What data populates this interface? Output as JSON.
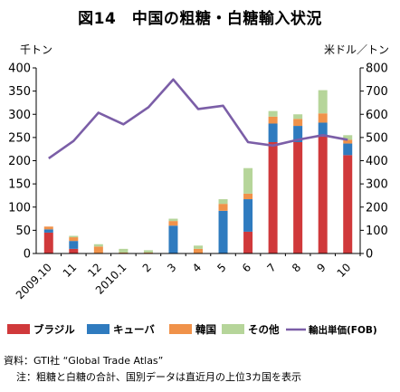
{
  "title": "図14　中国の粗糖・白糖輸入状況",
  "left_unit": "千トン",
  "right_unit": "米ドル／トン",
  "source": "資料：GTI社 “Global Trade Atlas”",
  "note": "注：粗糖と白糖の合計、国別データは直近月の上位3カ国を表示",
  "colors": {
    "brazil": "#d0393b",
    "cuba": "#2f7bbf",
    "korea": "#f0924a",
    "other": "#b6d59a",
    "price": "#7b5ea7"
  },
  "chart_data": {
    "type": "bar",
    "stacked": true,
    "categories": [
      "2009.10",
      "11",
      "12",
      "2010.1",
      "2",
      "3",
      "4",
      "5",
      "6",
      "7",
      "8",
      "9",
      "10"
    ],
    "series": [
      {
        "name": "ブラジル",
        "axis": "left",
        "values": [
          45,
          10,
          0,
          0,
          0,
          0,
          0,
          0,
          47,
          240,
          240,
          252,
          212
        ]
      },
      {
        "name": "キューバ",
        "axis": "left",
        "values": [
          7,
          17,
          0,
          0,
          0,
          60,
          0,
          92,
          70,
          40,
          35,
          30,
          25
        ]
      },
      {
        "name": "韓国",
        "axis": "left",
        "values": [
          6,
          8,
          15,
          2,
          2,
          10,
          10,
          15,
          12,
          15,
          15,
          20,
          8
        ]
      },
      {
        "name": "その他",
        "axis": "left",
        "values": [
          0,
          3,
          5,
          8,
          5,
          5,
          7,
          10,
          55,
          12,
          10,
          50,
          10
        ]
      },
      {
        "name": "輸出単価(FOB)",
        "type": "line",
        "axis": "right",
        "values": [
          410,
          485,
          607,
          557,
          630,
          750,
          623,
          637,
          480,
          465,
          490,
          510,
          490
        ]
      }
    ],
    "y_left": {
      "min": 0,
      "max": 400,
      "ticks": [
        0,
        50,
        100,
        150,
        200,
        250,
        300,
        350,
        400
      ]
    },
    "y_right": {
      "min": 0,
      "max": 800,
      "ticks": [
        0,
        100,
        200,
        300,
        400,
        500,
        600,
        700,
        800
      ]
    },
    "grid": false,
    "legend_placement": "bottom"
  }
}
